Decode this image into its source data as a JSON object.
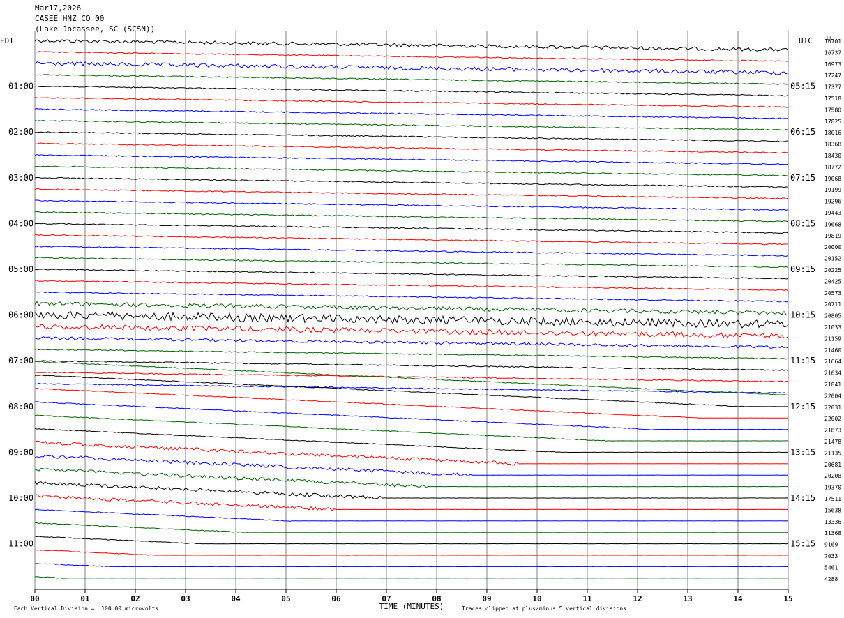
{
  "header": {
    "date": "Mar17,2026",
    "channel": "CASEE HNZ CO 00",
    "location": "(Lake Jocassee, SC (SCSN))"
  },
  "left_tz": "EDT",
  "right_tz": "UTC",
  "dc_label": "DC",
  "footer": {
    "scale_note": "Each Vertical Division =  100.00 microvolts",
    "clip_note": "Traces clipped at plus/minus 5 vertical divisions"
  },
  "colors": {
    "black": "#000000",
    "red": "#ff0000",
    "blue": "#0000ff",
    "green": "#006400",
    "grid": "#808080"
  },
  "chart_data": {
    "type": "line",
    "title": "Mar17,2026 CASEE HNZ CO 00 (Lake Jocassee, SC (SCSN))",
    "xlabel": "TIME (MINUTES)",
    "ylabel": "",
    "xlim": [
      0,
      15
    ],
    "x_ticks": [
      "00",
      "01",
      "02",
      "03",
      "04",
      "05",
      "06",
      "07",
      "08",
      "09",
      "10",
      "11",
      "12",
      "13",
      "14",
      "15"
    ],
    "grid": true,
    "trace_color_cycle": [
      "black",
      "red",
      "blue",
      "green"
    ],
    "left_time_labels": [
      {
        "trace": 4,
        "label": "01:00"
      },
      {
        "trace": 8,
        "label": "02:00"
      },
      {
        "trace": 12,
        "label": "03:00"
      },
      {
        "trace": 16,
        "label": "04:00"
      },
      {
        "trace": 20,
        "label": "05:00"
      },
      {
        "trace": 24,
        "label": "06:00"
      },
      {
        "trace": 28,
        "label": "07:00"
      },
      {
        "trace": 32,
        "label": "08:00"
      },
      {
        "trace": 36,
        "label": "09:00"
      },
      {
        "trace": 40,
        "label": "10:00"
      },
      {
        "trace": 44,
        "label": "11:00"
      }
    ],
    "right_time_labels": [
      {
        "trace": 4,
        "label": "05:15"
      },
      {
        "trace": 8,
        "label": "06:15"
      },
      {
        "trace": 12,
        "label": "07:15"
      },
      {
        "trace": 16,
        "label": "08:15"
      },
      {
        "trace": 20,
        "label": "09:15"
      },
      {
        "trace": 24,
        "label": "10:15"
      },
      {
        "trace": 28,
        "label": "11:15"
      },
      {
        "trace": 32,
        "label": "12:15"
      },
      {
        "trace": 36,
        "label": "13:15"
      },
      {
        "trace": 40,
        "label": "14:15"
      },
      {
        "trace": 44,
        "label": "15:15"
      }
    ],
    "dc_offsets": [
      "16701",
      "16737",
      "16973",
      "17247",
      "17377",
      "17518",
      "17580",
      "17825",
      "18016",
      "18368",
      "18430",
      "18772",
      "19068",
      "19199",
      "19296",
      "19443",
      "19668",
      "19819",
      "20000",
      "20152",
      "20225",
      "20425",
      "20573",
      "20711",
      "20805",
      "21033",
      "21159",
      "21460",
      "21664",
      "21634",
      "21841",
      "22004",
      "22031",
      "22002",
      "21873",
      "21478",
      "21135",
      "20681",
      "20208",
      "19370",
      "17511",
      "15638",
      "13336",
      "11368",
      "9169",
      "7033",
      "5461",
      "4288"
    ]
  }
}
